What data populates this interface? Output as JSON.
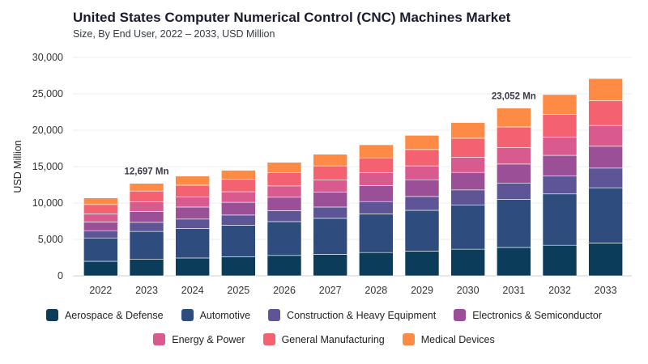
{
  "header": {
    "title": "United States Computer Numerical Control (CNC) Machines Market",
    "subtitle": "Size, By End User, 2022 – 2033, USD Million"
  },
  "chart_data": {
    "type": "bar",
    "stacked": true,
    "title": "United States Computer Numerical Control (CNC) Machines Market",
    "subtitle": "Size, By End User, 2022 – 2033, USD Million",
    "xlabel": "",
    "ylabel": "USD Million",
    "ylim": [
      0,
      30000
    ],
    "yticks": [
      0,
      5000,
      10000,
      15000,
      20000,
      25000,
      30000
    ],
    "ytick_labels": [
      "0",
      "5,000",
      "10,000",
      "15,000",
      "20,000",
      "25,000",
      "30,000"
    ],
    "grid": true,
    "legend_position": "bottom",
    "categories": [
      "2022",
      "2023",
      "2024",
      "2025",
      "2026",
      "2027",
      "2028",
      "2029",
      "2030",
      "2031",
      "2032",
      "2033"
    ],
    "series": [
      {
        "name": "Aerospace & Defense",
        "color": "#0b3d5a",
        "values": [
          2000,
          2300,
          2450,
          2600,
          2800,
          2950,
          3200,
          3400,
          3650,
          3900,
          4200,
          4500
        ]
      },
      {
        "name": "Automotive",
        "color": "#2e4d7e",
        "values": [
          3200,
          3800,
          4050,
          4350,
          4650,
          4950,
          5300,
          5600,
          6050,
          6600,
          7050,
          7600
        ]
      },
      {
        "name": "Construction & Heavy Equipment",
        "color": "#5d5596",
        "values": [
          1000,
          1250,
          1300,
          1400,
          1500,
          1550,
          1700,
          1900,
          2100,
          2250,
          2450,
          2700
        ]
      },
      {
        "name": "Electronics & Semiconductor",
        "color": "#9b4f96",
        "values": [
          1200,
          1500,
          1650,
          1750,
          1850,
          2050,
          2200,
          2300,
          2400,
          2600,
          2850,
          3000
        ]
      },
      {
        "name": "Energy & Power",
        "color": "#d95a8e",
        "values": [
          1100,
          1300,
          1400,
          1450,
          1550,
          1650,
          1750,
          1900,
          2100,
          2250,
          2500,
          2850
        ]
      },
      {
        "name": "General Manufacturing",
        "color": "#f46272",
        "values": [
          1300,
          1500,
          1600,
          1700,
          1800,
          1950,
          2050,
          2250,
          2600,
          2850,
          3100,
          3400
        ]
      },
      {
        "name": "Medical Devices",
        "color": "#fd8a45",
        "values": [
          900,
          1047,
          1250,
          1250,
          1450,
          1600,
          1800,
          1950,
          2150,
          2602,
          2750,
          3050
        ]
      }
    ],
    "annotations": [
      {
        "category": "2023",
        "text": "12,697 Mn"
      },
      {
        "category": "2031",
        "text": "23,052 Mn"
      }
    ]
  }
}
